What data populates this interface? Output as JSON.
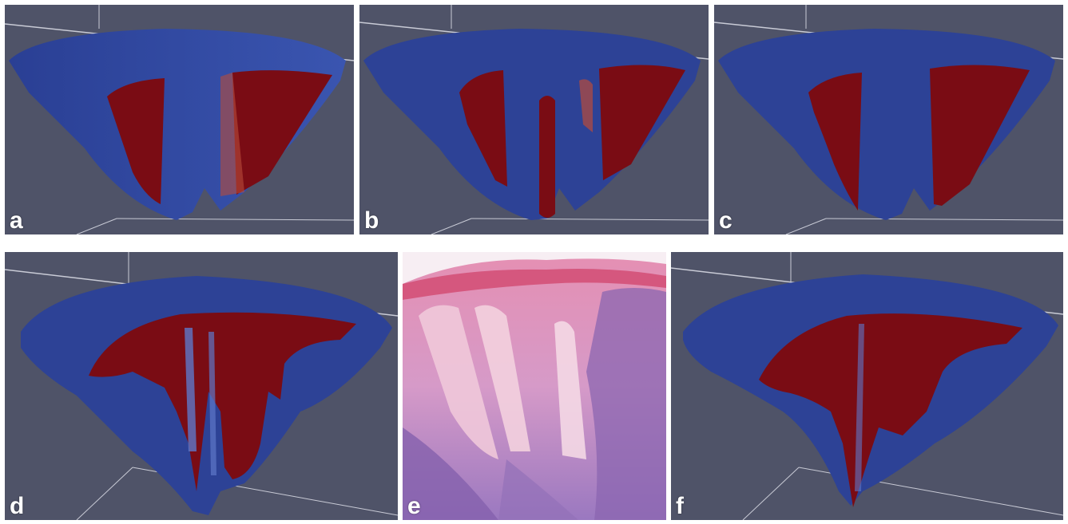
{
  "figure": {
    "panels": [
      {
        "id": "a",
        "label": "a",
        "kind": "3D tumor volume render"
      },
      {
        "id": "b",
        "label": "b",
        "kind": "3D tumor volume render"
      },
      {
        "id": "c",
        "label": "c",
        "kind": "3D tumor volume render"
      },
      {
        "id": "d",
        "label": "d",
        "kind": "3D tumor volume render"
      },
      {
        "id": "e",
        "label": "e",
        "kind": "histology section"
      },
      {
        "id": "f",
        "label": "f",
        "kind": "3D tumor volume render"
      }
    ]
  },
  "colors": {
    "background": "#4f5368",
    "tissue_blue": "#2a3f94",
    "tumor_red": "#7a0c14",
    "histology_pink": "#e7b5cf",
    "histology_purple": "#8f6bb5"
  }
}
